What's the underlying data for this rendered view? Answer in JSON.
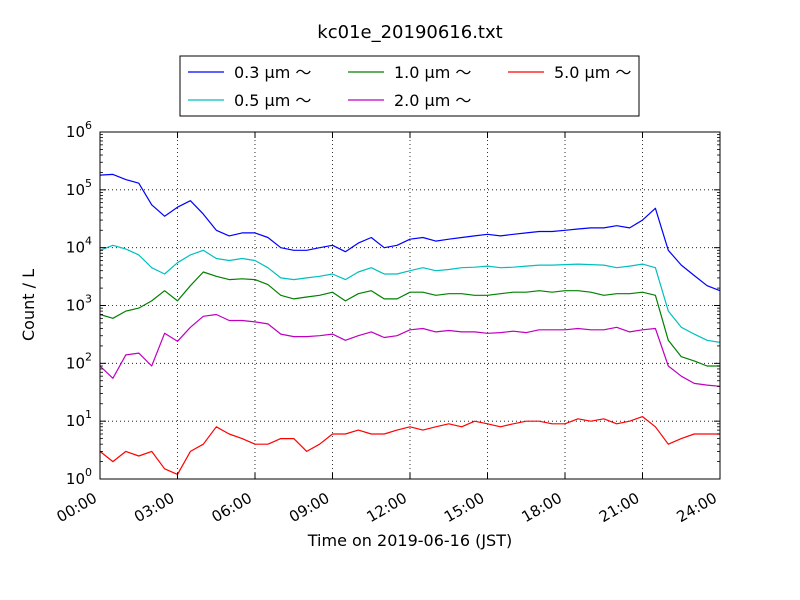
{
  "chart_data": {
    "type": "line",
    "title": "kc01e_20190616.txt",
    "xlabel": "Time on 2019-06-16 (JST)",
    "ylabel": "Count / L",
    "yscale": "log",
    "ylim": [
      1,
      1000000
    ],
    "xlim": [
      "00:00",
      "24:00"
    ],
    "grid": true,
    "legend_placement": "top-center",
    "x_ticks": [
      "00:00",
      "03:00",
      "06:00",
      "09:00",
      "12:00",
      "15:00",
      "18:00",
      "21:00",
      "24:00"
    ],
    "y_ticks": [
      {
        "base": "10",
        "exp": "0"
      },
      {
        "base": "10",
        "exp": "1"
      },
      {
        "base": "10",
        "exp": "2"
      },
      {
        "base": "10",
        "exp": "3"
      },
      {
        "base": "10",
        "exp": "4"
      },
      {
        "base": "10",
        "exp": "5"
      },
      {
        "base": "10",
        "exp": "6"
      }
    ],
    "x_hours": [
      0,
      0.5,
      1,
      1.5,
      2,
      2.5,
      3,
      3.5,
      4,
      4.5,
      5,
      5.5,
      6,
      6.5,
      7,
      7.5,
      8,
      8.5,
      9,
      9.5,
      10,
      10.5,
      11,
      11.5,
      12,
      12.5,
      13,
      13.5,
      14,
      14.5,
      15,
      15.5,
      16,
      16.5,
      17,
      17.5,
      18,
      18.5,
      19,
      19.5,
      20,
      20.5,
      21,
      21.5,
      22,
      22.5,
      23,
      23.5,
      24
    ],
    "series": [
      {
        "name": "0.3 μm ～",
        "color": "#0000ff",
        "values": [
          180000,
          185000,
          150000,
          130000,
          55000,
          35000,
          50000,
          65000,
          38000,
          20000,
          16000,
          18000,
          18000,
          15000,
          10000,
          9000,
          9000,
          10000,
          11000,
          8500,
          12000,
          15000,
          10000,
          11000,
          14000,
          15000,
          13000,
          14000,
          15000,
          16000,
          17000,
          16000,
          17000,
          18000,
          19000,
          19000,
          20000,
          21000,
          22000,
          22000,
          24000,
          22000,
          30000,
          48000,
          9000,
          5000,
          3300,
          2200,
          1800
        ]
      },
      {
        "name": "0.5 μm ～",
        "color": "#00bfbf",
        "values": [
          9000,
          11000,
          9500,
          7500,
          4500,
          3500,
          5500,
          7500,
          9000,
          6500,
          6000,
          6500,
          6000,
          4500,
          3000,
          2800,
          3000,
          3200,
          3500,
          2800,
          3800,
          4500,
          3500,
          3500,
          4000,
          4500,
          4000,
          4200,
          4500,
          4600,
          4800,
          4500,
          4600,
          4800,
          5000,
          5000,
          5100,
          5200,
          5100,
          5000,
          4500,
          4800,
          5200,
          4500,
          800,
          420,
          320,
          250,
          230
        ]
      },
      {
        "name": "1.0 μm ～",
        "color": "#008000",
        "values": [
          700,
          600,
          800,
          900,
          1200,
          1800,
          1200,
          2200,
          3800,
          3200,
          2800,
          2900,
          2800,
          2300,
          1500,
          1300,
          1400,
          1500,
          1700,
          1200,
          1600,
          1800,
          1300,
          1300,
          1700,
          1700,
          1500,
          1600,
          1600,
          1500,
          1500,
          1600,
          1700,
          1700,
          1800,
          1700,
          1800,
          1800,
          1700,
          1500,
          1600,
          1600,
          1700,
          1500,
          250,
          130,
          110,
          90,
          90
        ]
      },
      {
        "name": "2.0 μm ～",
        "color": "#bf00bf",
        "values": [
          90,
          55,
          140,
          150,
          90,
          330,
          240,
          420,
          650,
          700,
          550,
          550,
          520,
          480,
          320,
          290,
          290,
          300,
          320,
          250,
          300,
          350,
          280,
          300,
          380,
          400,
          350,
          370,
          350,
          350,
          330,
          340,
          360,
          340,
          380,
          380,
          380,
          400,
          380,
          380,
          420,
          350,
          380,
          400,
          90,
          60,
          45,
          42,
          40
        ]
      },
      {
        "name": "5.0 μm ～",
        "color": "#ff0000",
        "values": [
          3,
          2,
          3,
          2.5,
          3,
          1.5,
          1.2,
          3,
          4,
          8,
          6,
          5,
          4,
          4,
          5,
          5,
          3,
          4,
          6,
          6,
          7,
          6,
          6,
          7,
          8,
          7,
          8,
          9,
          8,
          10,
          9,
          8,
          9,
          10,
          10,
          9,
          9,
          11,
          10,
          11,
          9,
          10,
          12,
          8,
          4,
          5,
          6,
          6,
          6
        ]
      }
    ]
  }
}
